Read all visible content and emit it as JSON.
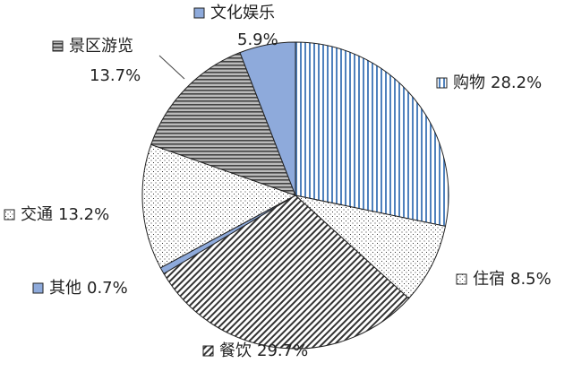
{
  "chart_data": {
    "type": "pie",
    "categories": [
      "购物",
      "住宿",
      "餐饮",
      "其他",
      "交通",
      "景区游览",
      "文化娱乐"
    ],
    "values": [
      28.2,
      8.5,
      29.7,
      0.7,
      13.2,
      13.7,
      5.9
    ],
    "value_labels": [
      "28.2%",
      "8.5%",
      "29.7%",
      "0.7%",
      "13.2%",
      "13.7%",
      "5.9%"
    ],
    "colors": [
      "#4f81bd",
      "#333333",
      "#333333",
      "#8eaadb",
      "#333333",
      "#555555",
      "#8eaadb"
    ],
    "patterns": [
      "vertical",
      "dots",
      "diagonal",
      "solid",
      "dots",
      "horizontal",
      "solid"
    ]
  }
}
